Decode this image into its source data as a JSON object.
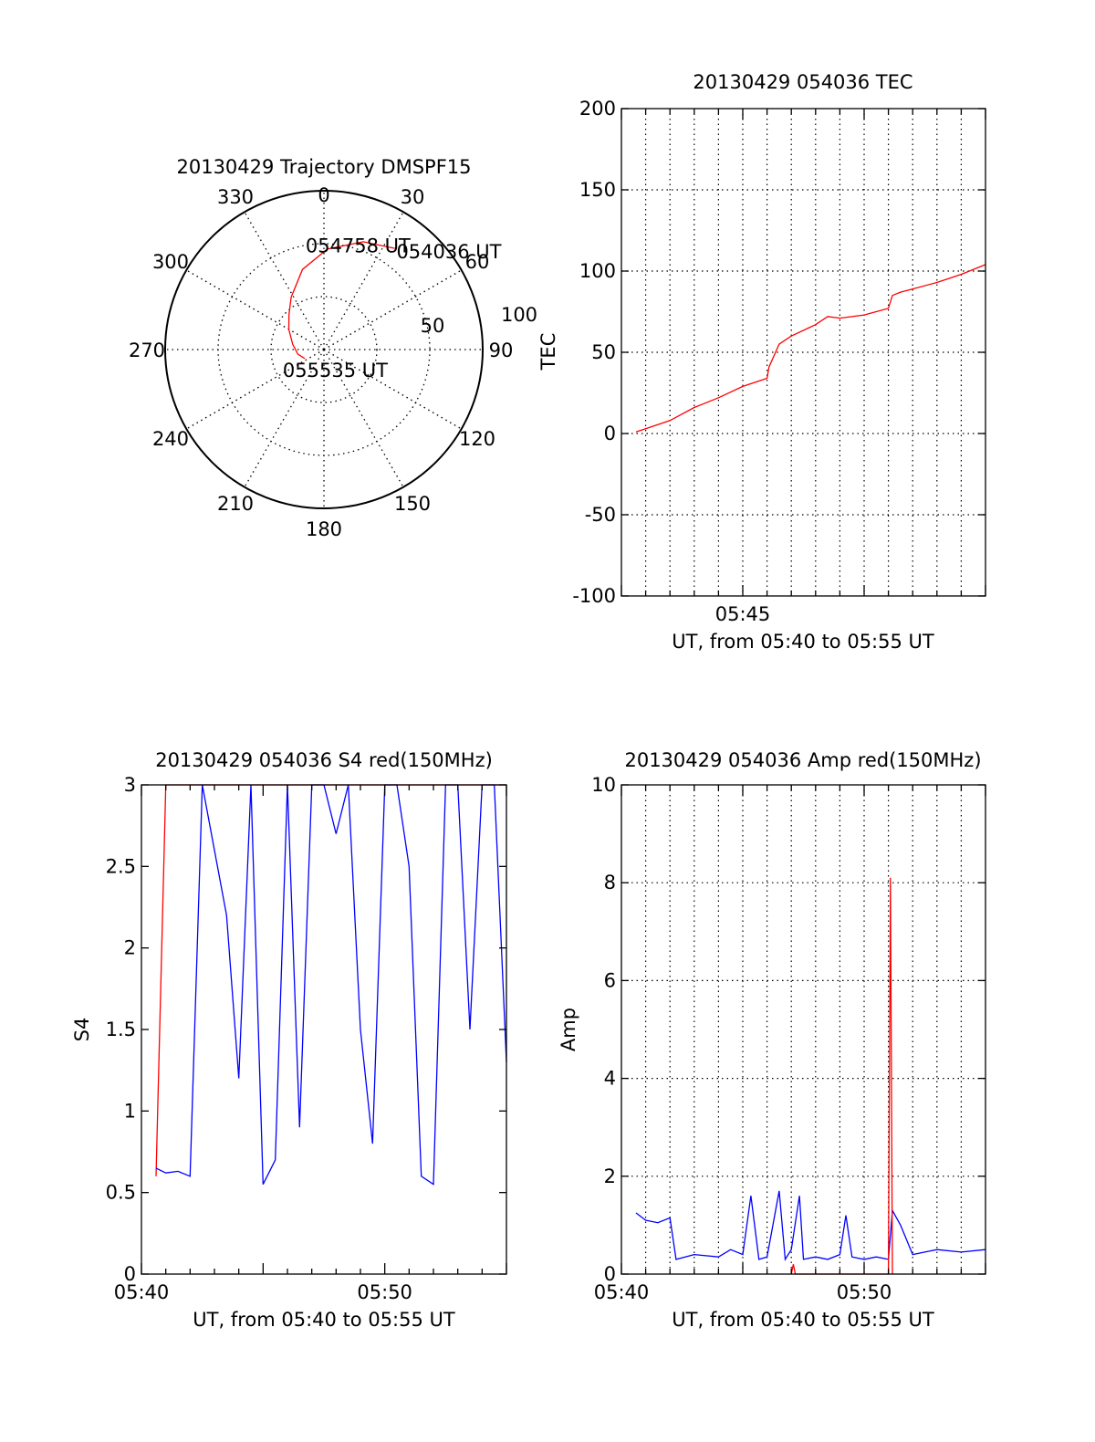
{
  "colors": {
    "primary": "#ff0000",
    "secondary": "#0000ff",
    "axis": "#000000",
    "grid": "#000000"
  },
  "chart_data": [
    {
      "type": "polar",
      "title": "20130429 Trajectory DMSPF15",
      "angle_labels": [
        "0",
        "30",
        "60",
        "90",
        "120",
        "150",
        "180",
        "210",
        "240",
        "270",
        "300",
        "330"
      ],
      "radius_labels": [
        "50",
        "100"
      ],
      "grid": true,
      "series": [
        {
          "color": "#ff0000",
          "points": [
            {
              "az": 35,
              "el": 20
            },
            {
              "az": 20,
              "el": 25
            },
            {
              "az": 2,
              "el": 33
            },
            {
              "az": -15,
              "el": 43
            },
            {
              "az": -32,
              "el": 55
            },
            {
              "az": -45,
              "el": 62
            },
            {
              "az": -60,
              "el": 67
            },
            {
              "az": -80,
              "el": 72
            },
            {
              "az": -100,
              "el": 75
            },
            {
              "az": -115,
              "el": 78
            }
          ]
        }
      ],
      "annotations": [
        {
          "text": "054036 UT",
          "az": 37,
          "el": 20
        },
        {
          "text": "054758 UT",
          "az": -9,
          "el": 30
        },
        {
          "text": "055535 UT",
          "az": -117,
          "el": 65
        }
      ]
    },
    {
      "type": "line",
      "title": "20130429 054036 TEC",
      "xlabel": "UT, from 05:40 to 05:55 UT",
      "ylabel": "TEC",
      "xlim": [
        "05:40",
        "05:55"
      ],
      "ylim": [
        -100,
        200
      ],
      "xticks": [
        "05:45"
      ],
      "yticks": [
        "-100",
        "-50",
        "0",
        "50",
        "100",
        "150",
        "200"
      ],
      "grid": true,
      "series": [
        {
          "color": "#ff0000",
          "x": [
            "05:40:36",
            "05:41",
            "05:42",
            "05:43",
            "05:44",
            "05:45",
            "05:46",
            "05:46:05",
            "05:46:30",
            "05:47",
            "05:48",
            "05:48:30",
            "05:49",
            "05:50",
            "05:51",
            "05:51:10",
            "05:51:30",
            "05:52",
            "05:53",
            "05:54",
            "05:55"
          ],
          "y": [
            1,
            3,
            8,
            16,
            22,
            29,
            34,
            41,
            55,
            60,
            67,
            72,
            71,
            73,
            77,
            85,
            87,
            89,
            93,
            98,
            104
          ]
        }
      ]
    },
    {
      "type": "line",
      "title": "20130429 054036 S4 red(150MHz)",
      "xlabel": "UT, from 05:40 to 05:55 UT",
      "ylabel": "S4",
      "xlim": [
        "05:40",
        "05:55"
      ],
      "ylim": [
        0,
        3
      ],
      "xticks": [
        "05:40",
        "05:50"
      ],
      "yticks": [
        "0",
        "0.5",
        "1",
        "1.5",
        "2",
        "2.5",
        "3"
      ],
      "grid": false,
      "series": [
        {
          "color": "#ff0000",
          "x": [
            "05:40:36",
            "05:41",
            "05:42",
            "05:43",
            "05:44",
            "05:45",
            "05:46",
            "05:47",
            "05:48",
            "05:49",
            "05:50",
            "05:51",
            "05:52",
            "05:53",
            "05:54",
            "05:55"
          ],
          "y": [
            0.6,
            3,
            3,
            3,
            3,
            3,
            3,
            3,
            3,
            3,
            3,
            3,
            3,
            3,
            3,
            3
          ]
        },
        {
          "color": "#0000ff",
          "x": [
            "05:40:36",
            "05:41",
            "05:41:30",
            "05:42",
            "05:42:30",
            "05:43",
            "05:43:30",
            "05:44",
            "05:44:30",
            "05:45",
            "05:45:30",
            "05:46",
            "05:46:30",
            "05:47",
            "05:47:30",
            "05:48",
            "05:48:30",
            "05:49",
            "05:49:30",
            "05:50",
            "05:50:30",
            "05:51",
            "05:51:30",
            "05:52",
            "05:52:30",
            "05:53",
            "05:53:30",
            "05:54",
            "05:54:30",
            "05:55"
          ],
          "y": [
            0.65,
            0.62,
            0.63,
            0.6,
            3,
            2.6,
            2.2,
            1.2,
            3,
            0.55,
            0.7,
            3,
            0.9,
            3,
            3,
            2.7,
            3,
            1.5,
            0.8,
            3,
            3,
            2.5,
            0.6,
            0.55,
            3,
            3,
            1.5,
            3,
            3,
            1.3
          ]
        }
      ]
    },
    {
      "type": "line",
      "title": "20130429 054036 Amp red(150MHz)",
      "xlabel": "UT, from 05:40 to 05:55 UT",
      "ylabel": "Amp",
      "xlim": [
        "05:40",
        "05:55"
      ],
      "ylim": [
        0,
        10
      ],
      "xticks": [
        "05:40",
        "05:50"
      ],
      "yticks": [
        "0",
        "2",
        "4",
        "6",
        "8",
        "10"
      ],
      "grid": true,
      "series": [
        {
          "color": "#0000ff",
          "x": [
            "05:40:36",
            "05:41",
            "05:41:30",
            "05:42",
            "05:42:15",
            "05:43",
            "05:44",
            "05:44:30",
            "05:45",
            "05:45:20",
            "05:45:40",
            "05:46",
            "05:46:30",
            "05:46:45",
            "05:47",
            "05:47:20",
            "05:47:30",
            "05:48",
            "05:48:30",
            "05:49",
            "05:49:15",
            "05:49:30",
            "05:50",
            "05:50:30",
            "05:51",
            "05:51:10",
            "05:51:30",
            "05:52",
            "05:52:30",
            "05:53",
            "05:54",
            "05:55"
          ],
          "y": [
            1.25,
            1.1,
            1.05,
            1.15,
            0.3,
            0.4,
            0.35,
            0.5,
            0.4,
            1.6,
            0.3,
            0.35,
            1.7,
            0.3,
            0.5,
            1.6,
            0.3,
            0.35,
            0.3,
            0.4,
            1.2,
            0.35,
            0.3,
            0.35,
            0.3,
            1.3,
            1.0,
            0.4,
            0.45,
            0.5,
            0.45,
            0.5
          ]
        },
        {
          "color": "#ff0000",
          "x": [
            "05:47:00",
            "05:47:05",
            "05:47:10",
            "05:51:00",
            "05:51:05",
            "05:51:10"
          ],
          "y": [
            0,
            0.2,
            0,
            0,
            8.1,
            0
          ]
        }
      ]
    }
  ]
}
